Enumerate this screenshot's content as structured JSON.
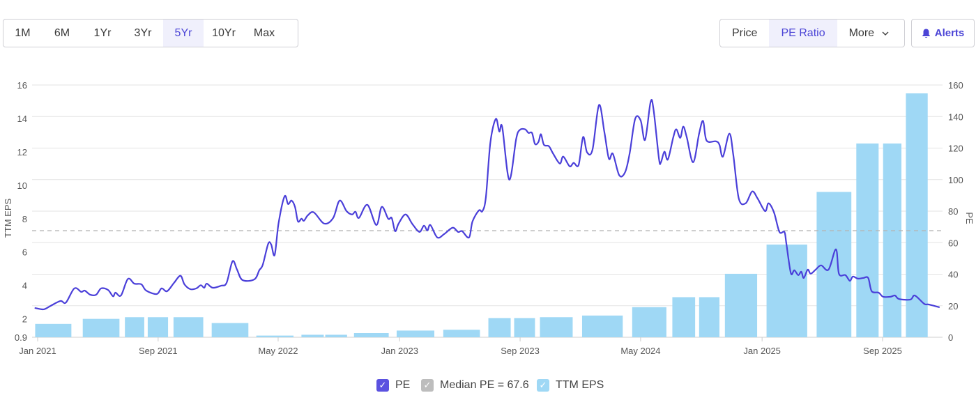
{
  "range_buttons": [
    "1M",
    "6M",
    "1Yr",
    "3Yr",
    "5Yr",
    "10Yr",
    "Max"
  ],
  "range_active": "5Yr",
  "view_buttons": {
    "price": "Price",
    "pe_ratio": "PE Ratio",
    "more": "More"
  },
  "alerts_label": "Alerts",
  "colors": {
    "accent": "#4b44d6",
    "pe_line": "#4a3fd9",
    "eps_bar": "#9fd8f5",
    "median": "#b5b5b5",
    "grid": "#e3e3e3"
  },
  "legend": {
    "pe": "PE",
    "median": "Median PE = 67.6",
    "eps": "TTM EPS"
  },
  "chart_data": {
    "type": "bar+line",
    "xlabel": "",
    "left_axis": {
      "label": "TTM EPS",
      "ticks": [
        "0.9",
        "2",
        "4",
        "6",
        "8",
        "10",
        "12",
        "14",
        "16"
      ],
      "range": [
        0.9,
        16
      ]
    },
    "right_axis": {
      "label": "PE",
      "ticks": [
        "0",
        "20",
        "40",
        "60",
        "80",
        "100",
        "120",
        "140",
        "160"
      ],
      "range": [
        0,
        160
      ]
    },
    "x_ticks": [
      {
        "label": "Jan 2021",
        "date": "2021-01-01"
      },
      {
        "label": "Sep 2021",
        "date": "2021-09-01"
      },
      {
        "label": "May 2022",
        "date": "2022-05-01"
      },
      {
        "label": "Jan 2023",
        "date": "2023-01-01"
      },
      {
        "label": "Sep 2023",
        "date": "2023-09-01"
      },
      {
        "label": "May 2024",
        "date": "2024-05-01"
      },
      {
        "label": "Jan 2025",
        "date": "2025-01-01"
      },
      {
        "label": "Sep 2025",
        "date": "2025-09-01"
      }
    ],
    "grid": true,
    "median_pe": 67.6,
    "eps_bars": [
      [
        "2020-12-27",
        "2021-03-10",
        1.7
      ],
      [
        "2021-04-02",
        "2021-06-15",
        2.0
      ],
      [
        "2021-06-26",
        "2021-08-04",
        2.1
      ],
      [
        "2021-08-11",
        "2021-09-21",
        2.1
      ],
      [
        "2021-10-02",
        "2021-12-01",
        2.1
      ],
      [
        "2021-12-18",
        "2022-03-02",
        1.75
      ],
      [
        "2022-03-18",
        "2022-06-01",
        1.0
      ],
      [
        "2022-06-17",
        "2022-08-01",
        1.05
      ],
      [
        "2022-08-04",
        "2022-09-17",
        1.05
      ],
      [
        "2022-10-01",
        "2022-12-10",
        1.15
      ],
      [
        "2022-12-26",
        "2023-03-12",
        1.3
      ],
      [
        "2023-03-30",
        "2023-06-12",
        1.35
      ],
      [
        "2023-06-29",
        "2023-08-13",
        2.05
      ],
      [
        "2023-08-20",
        "2023-10-01",
        2.05
      ],
      [
        "2023-10-11",
        "2023-12-16",
        2.1
      ],
      [
        "2024-01-04",
        "2024-03-26",
        2.2
      ],
      [
        "2024-04-14",
        "2024-06-22",
        2.7
      ],
      [
        "2024-07-04",
        "2024-08-19",
        3.3
      ],
      [
        "2024-08-27",
        "2024-10-07",
        3.3
      ],
      [
        "2024-10-18",
        "2024-12-22",
        4.7
      ],
      [
        "2025-01-10",
        "2025-04-02",
        6.45
      ],
      [
        "2025-04-21",
        "2025-06-30",
        9.6
      ],
      [
        "2025-07-10",
        "2025-08-24",
        12.5
      ],
      [
        "2025-09-02",
        "2025-10-09",
        12.5
      ],
      [
        "2025-10-18",
        "2025-12-01",
        15.5
      ]
    ],
    "pe_series": [
      [
        "2020-12-26",
        18.6
      ],
      [
        "2021-01-13",
        17.7
      ],
      [
        "2021-01-27",
        19.9
      ],
      [
        "2021-02-16",
        23
      ],
      [
        "2021-02-27",
        22
      ],
      [
        "2021-03-16",
        31
      ],
      [
        "2021-03-30",
        28.8
      ],
      [
        "2021-04-06",
        29.6
      ],
      [
        "2021-04-17",
        27
      ],
      [
        "2021-04-29",
        27
      ],
      [
        "2021-05-09",
        31
      ],
      [
        "2021-05-23",
        30
      ],
      [
        "2021-06-02",
        26
      ],
      [
        "2021-06-07",
        28.3
      ],
      [
        "2021-06-18",
        26.5
      ],
      [
        "2021-07-02",
        37
      ],
      [
        "2021-07-15",
        34
      ],
      [
        "2021-07-29",
        33.6
      ],
      [
        "2021-08-08",
        29.6
      ],
      [
        "2021-08-29",
        27.4
      ],
      [
        "2021-09-08",
        31
      ],
      [
        "2021-09-19",
        29.2
      ],
      [
        "2021-10-03",
        34.5
      ],
      [
        "2021-10-16",
        39
      ],
      [
        "2021-10-24",
        33.6
      ],
      [
        "2021-11-05",
        30.5
      ],
      [
        "2021-11-17",
        31
      ],
      [
        "2021-11-26",
        33
      ],
      [
        "2021-12-03",
        31.4
      ],
      [
        "2021-12-08",
        34
      ],
      [
        "2021-12-20",
        31.4
      ],
      [
        "2022-01-06",
        32.7
      ],
      [
        "2022-01-17",
        34.5
      ],
      [
        "2022-01-29",
        48.2
      ],
      [
        "2022-02-07",
        43
      ],
      [
        "2022-02-18",
        36.3
      ],
      [
        "2022-03-14",
        36.7
      ],
      [
        "2022-03-24",
        42.5
      ],
      [
        "2022-03-31",
        46
      ],
      [
        "2022-04-11",
        59.3
      ],
      [
        "2022-04-17",
        58.8
      ],
      [
        "2022-04-24",
        52.2
      ],
      [
        "2022-05-02",
        72.6
      ],
      [
        "2022-05-14",
        89.4
      ],
      [
        "2022-05-21",
        84.5
      ],
      [
        "2022-05-28",
        86.7
      ],
      [
        "2022-06-04",
        82.7
      ],
      [
        "2022-06-10",
        73.5
      ],
      [
        "2022-06-17",
        75.2
      ],
      [
        "2022-06-22",
        73.9
      ],
      [
        "2022-06-30",
        77.4
      ],
      [
        "2022-07-12",
        79.2
      ],
      [
        "2022-08-02",
        72.1
      ],
      [
        "2022-08-20",
        75.7
      ],
      [
        "2022-09-02",
        86.7
      ],
      [
        "2022-09-16",
        80
      ],
      [
        "2022-09-27",
        77.9
      ],
      [
        "2022-10-04",
        79.6
      ],
      [
        "2022-10-11",
        75.7
      ],
      [
        "2022-10-28",
        84
      ],
      [
        "2022-11-15",
        71.2
      ],
      [
        "2022-11-26",
        82.7
      ],
      [
        "2022-12-09",
        75.2
      ],
      [
        "2022-12-16",
        75.7
      ],
      [
        "2022-12-23",
        67.3
      ],
      [
        "2022-12-30",
        72.1
      ],
      [
        "2023-01-13",
        77.9
      ],
      [
        "2023-01-27",
        71.7
      ],
      [
        "2023-02-10",
        66.8
      ],
      [
        "2023-02-19",
        70.8
      ],
      [
        "2023-02-26",
        67.7
      ],
      [
        "2023-03-04",
        71.2
      ],
      [
        "2023-03-18",
        63.3
      ],
      [
        "2023-04-01",
        65.5
      ],
      [
        "2023-04-18",
        69.5
      ],
      [
        "2023-04-29",
        66.8
      ],
      [
        "2023-05-07",
        67.3
      ],
      [
        "2023-05-21",
        63.3
      ],
      [
        "2023-05-28",
        73.5
      ],
      [
        "2023-06-10",
        80.5
      ],
      [
        "2023-06-17",
        80
      ],
      [
        "2023-06-24",
        88.9
      ],
      [
        "2023-07-03",
        123.5
      ],
      [
        "2023-07-14",
        138.5
      ],
      [
        "2023-07-21",
        130.5
      ],
      [
        "2023-07-27",
        133.2
      ],
      [
        "2023-08-10",
        100
      ],
      [
        "2023-08-24",
        125.7
      ],
      [
        "2023-08-31",
        131.4
      ],
      [
        "2023-09-11",
        131.9
      ],
      [
        "2023-09-18",
        129.6
      ],
      [
        "2023-09-25",
        129.6
      ],
      [
        "2023-10-01",
        122.6
      ],
      [
        "2023-10-08",
        123.9
      ],
      [
        "2023-10-13",
        128.8
      ],
      [
        "2023-10-19",
        122.1
      ],
      [
        "2023-10-29",
        121.2
      ],
      [
        "2023-11-06",
        116.8
      ],
      [
        "2023-11-20",
        110.2
      ],
      [
        "2023-11-27",
        114.6
      ],
      [
        "2023-12-10",
        108.4
      ],
      [
        "2023-12-18",
        110.6
      ],
      [
        "2023-12-28",
        109.3
      ],
      [
        "2024-01-06",
        127
      ],
      [
        "2024-01-14",
        117.3
      ],
      [
        "2024-01-25",
        119
      ],
      [
        "2024-02-07",
        147.3
      ],
      [
        "2024-02-18",
        130
      ],
      [
        "2024-02-27",
        113.3
      ],
      [
        "2024-03-06",
        116.4
      ],
      [
        "2024-03-19",
        102.7
      ],
      [
        "2024-03-31",
        104.9
      ],
      [
        "2024-04-09",
        116.8
      ],
      [
        "2024-04-20",
        138.5
      ],
      [
        "2024-05-01",
        137.6
      ],
      [
        "2024-05-10",
        125.2
      ],
      [
        "2024-05-21",
        149
      ],
      [
        "2024-05-27",
        144.7
      ],
      [
        "2024-06-07",
        113.3
      ],
      [
        "2024-06-11",
        111
      ],
      [
        "2024-06-18",
        117.7
      ],
      [
        "2024-06-25",
        112.8
      ],
      [
        "2024-07-06",
        127
      ],
      [
        "2024-07-12",
        131.9
      ],
      [
        "2024-07-20",
        126.5
      ],
      [
        "2024-07-26",
        133.6
      ],
      [
        "2024-08-02",
        127
      ],
      [
        "2024-08-15",
        111
      ],
      [
        "2024-08-27",
        129.2
      ],
      [
        "2024-09-04",
        137.2
      ],
      [
        "2024-09-11",
        124.8
      ],
      [
        "2024-09-30",
        124.3
      ],
      [
        "2024-10-07",
        122.1
      ],
      [
        "2024-10-14",
        114.6
      ],
      [
        "2024-10-27",
        129.2
      ],
      [
        "2024-11-04",
        115.5
      ],
      [
        "2024-11-15",
        88
      ],
      [
        "2024-11-29",
        85
      ],
      [
        "2024-12-12",
        92.5
      ],
      [
        "2024-12-23",
        88
      ],
      [
        "2025-01-07",
        80
      ],
      [
        "2025-01-14",
        85
      ],
      [
        "2025-01-25",
        79.2
      ],
      [
        "2025-02-05",
        66.8
      ],
      [
        "2025-02-15",
        66.8
      ],
      [
        "2025-02-19",
        59.3
      ],
      [
        "2025-02-28",
        40.7
      ],
      [
        "2025-03-07",
        42.5
      ],
      [
        "2025-03-15",
        39.4
      ],
      [
        "2025-03-21",
        41.6
      ],
      [
        "2025-03-26",
        37.6
      ],
      [
        "2025-04-03",
        42.9
      ],
      [
        "2025-04-09",
        40.3
      ],
      [
        "2025-04-19",
        42.9
      ],
      [
        "2025-04-30",
        45.6
      ],
      [
        "2025-05-15",
        42.9
      ],
      [
        "2025-05-30",
        55.8
      ],
      [
        "2025-06-05",
        40.3
      ],
      [
        "2025-06-18",
        39.4
      ],
      [
        "2025-06-27",
        35.8
      ],
      [
        "2025-07-03",
        38.5
      ],
      [
        "2025-07-13",
        37.2
      ],
      [
        "2025-07-24",
        37.6
      ],
      [
        "2025-08-03",
        37.6
      ],
      [
        "2025-08-10",
        29.2
      ],
      [
        "2025-08-24",
        28.3
      ],
      [
        "2025-09-02",
        25.7
      ],
      [
        "2025-09-17",
        25.7
      ],
      [
        "2025-09-26",
        26.5
      ],
      [
        "2025-10-04",
        24.3
      ],
      [
        "2025-10-27",
        23.9
      ],
      [
        "2025-11-05",
        26.5
      ],
      [
        "2025-11-24",
        21.2
      ],
      [
        "2025-12-03",
        20.8
      ],
      [
        "2025-12-25",
        19
      ]
    ]
  }
}
